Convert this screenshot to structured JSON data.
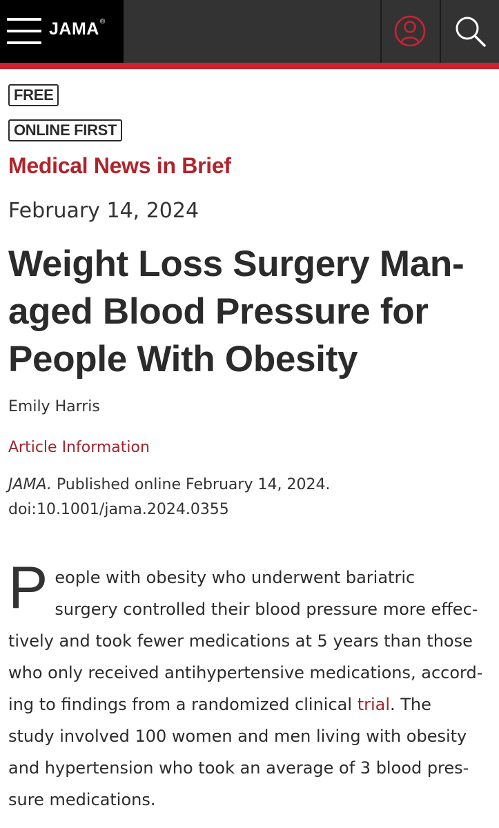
{
  "header": {
    "logo": "JAMA",
    "logo_mark": "®",
    "menu_icon": "hamburger-menu-icon",
    "user_icon": "user-account-icon",
    "search_icon": "search-icon",
    "accent_color": "#cc2233"
  },
  "article": {
    "badges": [
      "FREE",
      "ONLINE FIRST"
    ],
    "section": "Medical News in Brief",
    "date": "February 14, 2024",
    "title": "Weight Loss Surgery Man-aged Blood Pressure for People With Obesity",
    "title_lines": [
      "Weight Loss Surgery Man-",
      "aged Blood Pressure for",
      "People With Obesity"
    ],
    "author": "Emily Harris",
    "article_info_link": "Article Information",
    "citation": {
      "journal": "JAMA.",
      "published": " Published online February 14, 2024.",
      "doi": "doi:10.1001/jama.2024.0355"
    },
    "body": {
      "dropcap": "P",
      "line1": "eople with obesity who underwent bariatric",
      "line2": "surgery controlled their blood pressure more effec-",
      "line3": "tively and took fewer medications at 5 years than those",
      "line4": "who only received antihypertensive medications, accord-",
      "line5_before_link": "ing to findings from a randomized clinical ",
      "link_text": "trial",
      "line5_after_link": ". The",
      "line6": "study involved 100 women and men living with obesity",
      "line7": "and hypertension who took an average of 3 blood pres-",
      "line8": "sure medications."
    }
  }
}
